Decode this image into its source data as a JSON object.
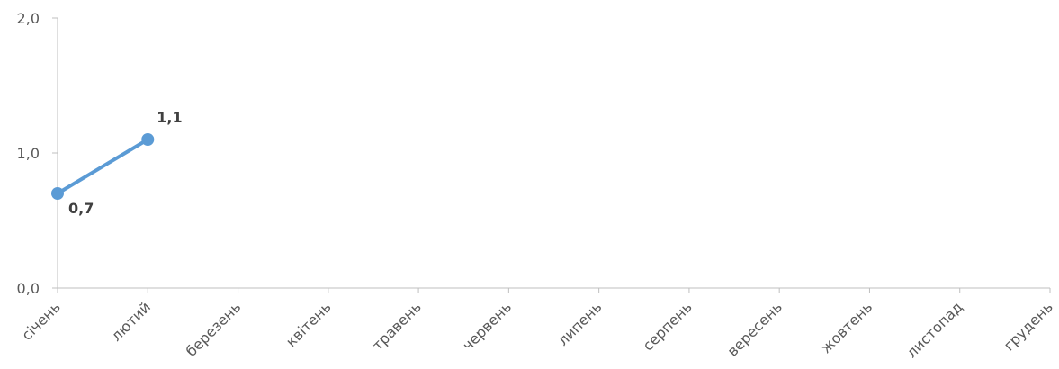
{
  "chart_data": {
    "type": "line",
    "title": "",
    "xlabel": "",
    "ylabel": "",
    "categories": [
      "січень",
      "лютий",
      "березень",
      "квітень",
      "травень",
      "червень",
      "липень",
      "серпень",
      "вересень",
      "жовтень",
      "листопад",
      "грудень"
    ],
    "series": [
      {
        "values": [
          0.7,
          1.1,
          null,
          null,
          null,
          null,
          null,
          null,
          null,
          null,
          null,
          null
        ],
        "color": "#5B9BD5"
      }
    ],
    "data_labels": [
      "0,7",
      "1,1"
    ],
    "ylim": [
      0,
      2
    ],
    "yticks": [
      0,
      1,
      2
    ],
    "ytick_labels": [
      "0,0",
      "1,0",
      "2,0"
    ],
    "grid": false,
    "legend": "none",
    "axis_color": "#BFBFBF"
  }
}
